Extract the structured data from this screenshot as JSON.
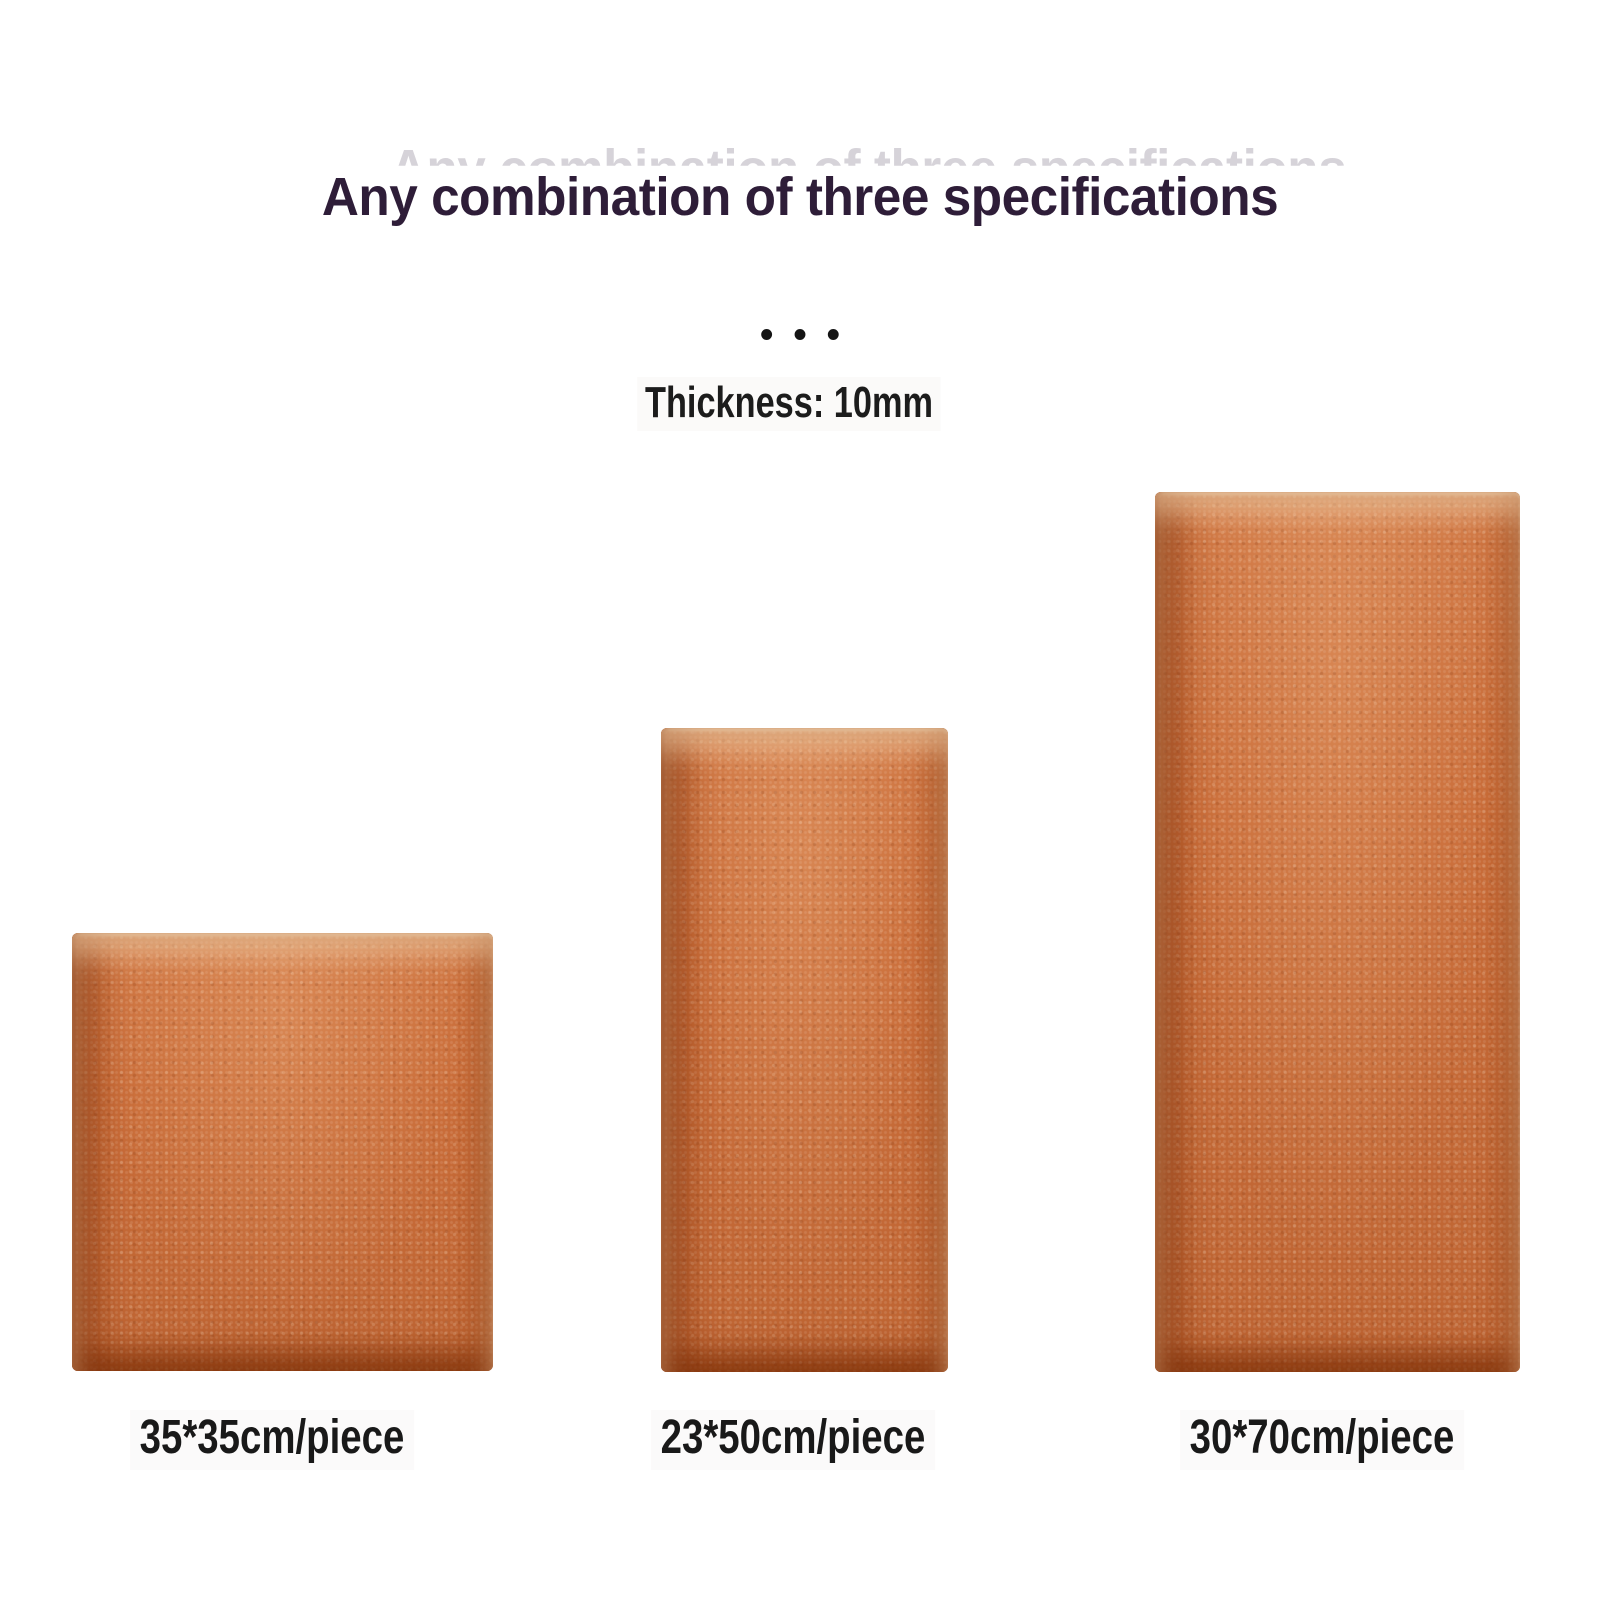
{
  "page": {
    "background_color": "#ffffff"
  },
  "header": {
    "title": "Any combination of three specifications",
    "title_color": "#2e1d38",
    "separator_dots": "•••",
    "thickness_note": "Thickness: 10mm"
  },
  "panels": [
    {
      "label": "35*35cm/piece"
    },
    {
      "label": "23*50cm/piece"
    },
    {
      "label": "30*70cm/piece"
    }
  ],
  "colors": {
    "panel_face": "#cb6e3a",
    "panel_bevel_dark": "#762804",
    "panel_bevel_light": "#ffe2ba",
    "label_text": "#191919",
    "dots_color": "#141414"
  }
}
